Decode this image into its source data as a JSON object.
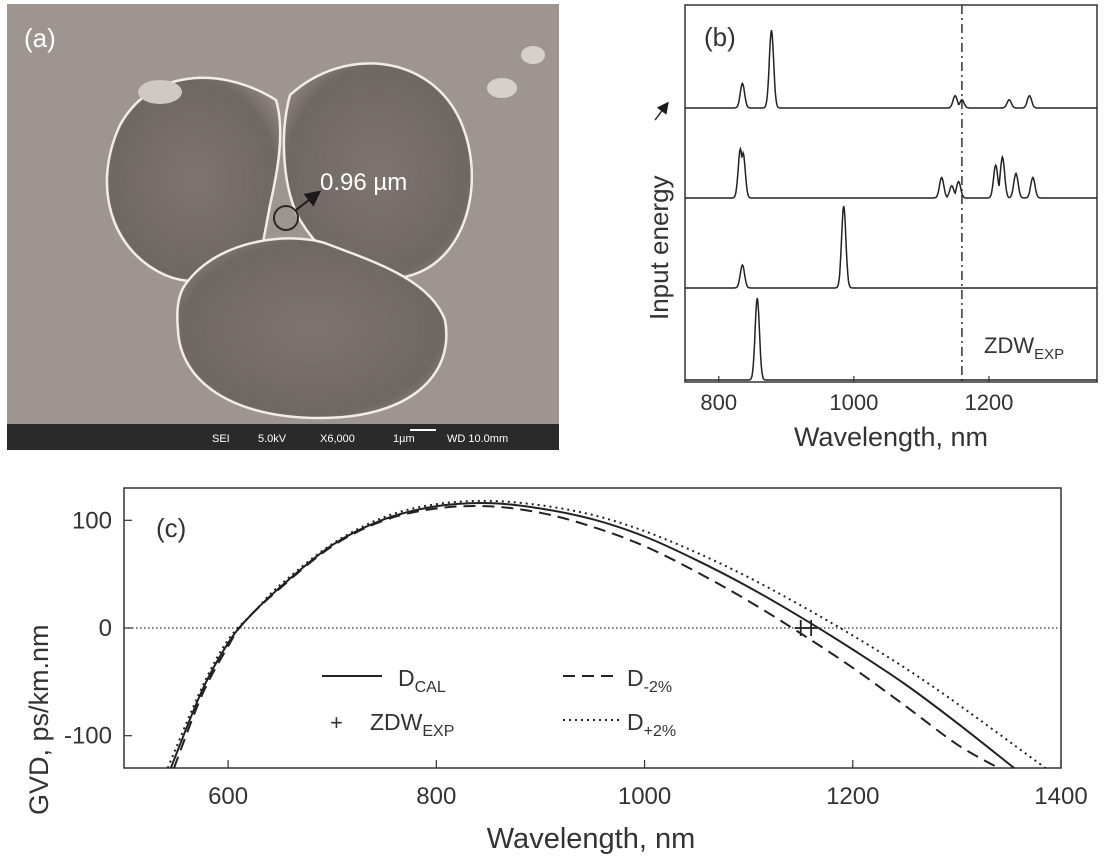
{
  "panel_a": {
    "label": "(a)",
    "scale_annotation": "0.96 µm",
    "sem_info_bar": {
      "detector": "SEI",
      "voltage": "5.0kV",
      "magnification": "X6,000",
      "scale_bar": "1µm",
      "working_distance": "WD 10.0mm"
    }
  },
  "panel_b": {
    "label": "(b)",
    "ylabel": "Input energy",
    "xlabel": "Wavelength, nm",
    "annotation": {
      "main": "ZDW",
      "sub": "EXP"
    }
  },
  "panel_c": {
    "label": "(c)",
    "ylabel": "GVD, ps/km.nm",
    "xlabel": "Wavelength, nm",
    "legend": {
      "d_cal": {
        "main": "D",
        "sub": "CAL"
      },
      "d_minus": {
        "main": "D",
        "sub": "-2%"
      },
      "zdw": {
        "main": "ZDW",
        "sub": "EXP"
      },
      "d_plus": {
        "main": "D",
        "sub": "+2%"
      }
    }
  },
  "chart_data": [
    {
      "type": "line",
      "panel": "(b)",
      "xlabel": "Wavelength, nm",
      "ylabel": "Input energy",
      "xlim": [
        750,
        1360
      ],
      "xticks": [
        800,
        1000,
        1200
      ],
      "xtick_labels": [
        "800",
        "1000",
        "1200"
      ],
      "vertical_line": {
        "x": 1160,
        "style": "dash-dot",
        "label": "ZDW_EXP"
      },
      "series": [
        {
          "peaks": [
            [
              857,
              1.0
            ]
          ]
        },
        {
          "peaks": [
            [
              835,
              0.28
            ],
            [
              985,
              1.0
            ]
          ]
        },
        {
          "peaks": [
            [
              832,
              0.6
            ],
            [
              836,
              0.55
            ],
            [
              1130,
              0.25
            ],
            [
              1145,
              0.15
            ],
            [
              1155,
              0.2
            ],
            [
              1210,
              0.4
            ],
            [
              1220,
              0.5
            ],
            [
              1240,
              0.3
            ],
            [
              1265,
              0.25
            ]
          ]
        },
        {
          "peaks": [
            [
              835,
              0.3
            ],
            [
              878,
              0.95
            ],
            [
              1150,
              0.15
            ],
            [
              1160,
              0.1
            ],
            [
              1230,
              0.1
            ],
            [
              1260,
              0.15
            ]
          ]
        }
      ]
    },
    {
      "type": "line",
      "panel": "(c)",
      "xlabel": "Wavelength, nm",
      "ylabel": "GVD, ps/km.nm",
      "xlim": [
        500,
        1400
      ],
      "ylim": [
        -130,
        130
      ],
      "xticks": [
        600,
        800,
        1000,
        1200,
        1400
      ],
      "xtick_labels": [
        "600",
        "800",
        "1000",
        "1200",
        "1400"
      ],
      "yticks": [
        100,
        0,
        -100
      ],
      "ytick_labels": [
        "100",
        "0",
        "-100"
      ],
      "zero_line": true,
      "series": [
        {
          "name": "D_CAL",
          "style": "solid",
          "x": [
            545,
            575,
            600,
            620,
            650,
            700,
            750,
            800,
            850,
            900,
            950,
            1000,
            1050,
            1100,
            1150,
            1200,
            1250,
            1300,
            1355
          ],
          "y": [
            -130,
            -58,
            -14,
            10,
            38,
            77,
            101,
            113,
            116,
            111,
            101,
            85,
            63,
            38,
            10,
            -20,
            -52,
            -88,
            -130
          ]
        },
        {
          "name": "D_-2%",
          "style": "dashed",
          "x": [
            548,
            575,
            600,
            615,
            650,
            700,
            750,
            800,
            850,
            900,
            950,
            1000,
            1050,
            1100,
            1150,
            1200,
            1250,
            1300,
            1340
          ],
          "y": [
            -130,
            -62,
            -17,
            5,
            37,
            76,
            100,
            111,
            113,
            107,
            94,
            76,
            52,
            25,
            -5,
            -37,
            -72,
            -108,
            -130
          ]
        },
        {
          "name": "D_+2%",
          "style": "dotted",
          "x": [
            542,
            575,
            600,
            625,
            650,
            700,
            750,
            800,
            850,
            900,
            950,
            1000,
            1050,
            1100,
            1150,
            1200,
            1250,
            1300,
            1385
          ],
          "y": [
            -130,
            -55,
            -11,
            15,
            40,
            78,
            103,
            115,
            118,
            114,
            105,
            90,
            70,
            47,
            21,
            -7,
            -37,
            -70,
            -130
          ]
        },
        {
          "name": "ZDW_EXP",
          "style": "marker",
          "x": [
            1150,
            1160
          ],
          "y": [
            0,
            0
          ]
        }
      ]
    }
  ]
}
